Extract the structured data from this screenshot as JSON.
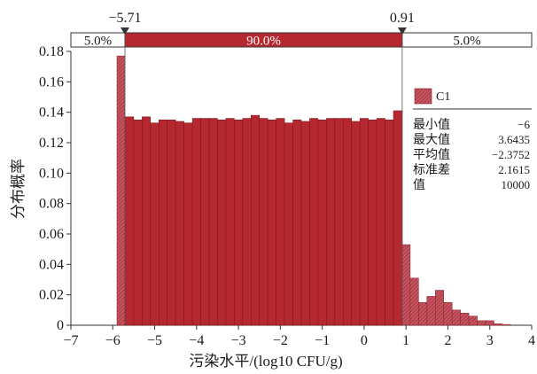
{
  "chart_data": {
    "type": "bar",
    "title": "",
    "xlabel": "污染水平/(log10 CFU/g)",
    "ylabel": "分布概率",
    "xlim": [
      -7,
      4
    ],
    "ylim": [
      0,
      0.18
    ],
    "xticks": [
      -7,
      -6,
      -5,
      -4,
      -3,
      -2,
      -1,
      0,
      1,
      2,
      3,
      4
    ],
    "yticks": [
      0,
      0.02,
      0.04,
      0.06,
      0.08,
      0.1,
      0.12,
      0.14,
      0.16,
      0.18
    ],
    "ytick_labels": [
      "0",
      "0.02",
      "0.04",
      "0.06",
      "0.08",
      "0.10",
      "0.12",
      "0.14",
      "0.16",
      "0.18"
    ],
    "bin_width": 0.2,
    "bins": [
      {
        "x0": -5.9,
        "x1": -5.71,
        "value": 0.177
      },
      {
        "x0": -5.71,
        "x1": -5.5,
        "value": 0.137
      },
      {
        "x0": -5.5,
        "x1": -5.3,
        "value": 0.135
      },
      {
        "x0": -5.3,
        "x1": -5.1,
        "value": 0.137
      },
      {
        "x0": -5.1,
        "x1": -4.9,
        "value": 0.133
      },
      {
        "x0": -4.9,
        "x1": -4.7,
        "value": 0.135
      },
      {
        "x0": -4.7,
        "x1": -4.5,
        "value": 0.135
      },
      {
        "x0": -4.5,
        "x1": -4.3,
        "value": 0.134
      },
      {
        "x0": -4.3,
        "x1": -4.1,
        "value": 0.133
      },
      {
        "x0": -4.1,
        "x1": -3.9,
        "value": 0.136
      },
      {
        "x0": -3.9,
        "x1": -3.7,
        "value": 0.136
      },
      {
        "x0": -3.7,
        "x1": -3.5,
        "value": 0.136
      },
      {
        "x0": -3.5,
        "x1": -3.3,
        "value": 0.135
      },
      {
        "x0": -3.3,
        "x1": -3.1,
        "value": 0.136
      },
      {
        "x0": -3.1,
        "x1": -2.9,
        "value": 0.135
      },
      {
        "x0": -2.9,
        "x1": -2.7,
        "value": 0.136
      },
      {
        "x0": -2.7,
        "x1": -2.5,
        "value": 0.138
      },
      {
        "x0": -2.5,
        "x1": -2.3,
        "value": 0.136
      },
      {
        "x0": -2.3,
        "x1": -2.1,
        "value": 0.135
      },
      {
        "x0": -2.1,
        "x1": -1.9,
        "value": 0.136
      },
      {
        "x0": -1.9,
        "x1": -1.7,
        "value": 0.133
      },
      {
        "x0": -1.7,
        "x1": -1.5,
        "value": 0.135
      },
      {
        "x0": -1.5,
        "x1": -1.3,
        "value": 0.134
      },
      {
        "x0": -1.3,
        "x1": -1.1,
        "value": 0.136
      },
      {
        "x0": -1.1,
        "x1": -0.9,
        "value": 0.135
      },
      {
        "x0": -0.9,
        "x1": -0.7,
        "value": 0.136
      },
      {
        "x0": -0.7,
        "x1": -0.5,
        "value": 0.136
      },
      {
        "x0": -0.5,
        "x1": -0.3,
        "value": 0.136
      },
      {
        "x0": -0.3,
        "x1": -0.1,
        "value": 0.134
      },
      {
        "x0": -0.1,
        "x1": 0.1,
        "value": 0.136
      },
      {
        "x0": 0.1,
        "x1": 0.3,
        "value": 0.135
      },
      {
        "x0": 0.3,
        "x1": 0.5,
        "value": 0.136
      },
      {
        "x0": 0.5,
        "x1": 0.7,
        "value": 0.135
      },
      {
        "x0": 0.7,
        "x1": 0.91,
        "value": 0.141
      },
      {
        "x0": 0.91,
        "x1": 1.1,
        "value": 0.053
      },
      {
        "x0": 1.1,
        "x1": 1.3,
        "value": 0.031
      },
      {
        "x0": 1.3,
        "x1": 1.5,
        "value": 0.015
      },
      {
        "x0": 1.5,
        "x1": 1.7,
        "value": 0.019
      },
      {
        "x0": 1.7,
        "x1": 1.9,
        "value": 0.023
      },
      {
        "x0": 1.9,
        "x1": 2.1,
        "value": 0.015
      },
      {
        "x0": 2.1,
        "x1": 2.3,
        "value": 0.01
      },
      {
        "x0": 2.3,
        "x1": 2.5,
        "value": 0.008
      },
      {
        "x0": 2.5,
        "x1": 2.7,
        "value": 0.006
      },
      {
        "x0": 2.7,
        "x1": 2.9,
        "value": 0.003
      },
      {
        "x0": 2.9,
        "x1": 3.1,
        "value": 0.003
      },
      {
        "x0": 3.1,
        "x1": 3.3,
        "value": 0.001
      },
      {
        "x0": 3.3,
        "x1": 3.5,
        "value": 0.0005
      }
    ],
    "series": [
      {
        "name": "C1",
        "color": "#b5282f"
      }
    ],
    "delimiters": [
      {
        "value": -5.71,
        "label": "−5.71"
      },
      {
        "value": 0.91,
        "label": "0.91"
      }
    ],
    "percent_bar": [
      {
        "label": "5.0%",
        "from": -7,
        "to": -5.71
      },
      {
        "label": "90.0%",
        "from": -5.71,
        "to": 0.91
      },
      {
        "label": "5.0%",
        "from": 0.91,
        "to": 4
      }
    ],
    "stats": [
      {
        "label": "最小值",
        "value": "−6"
      },
      {
        "label": "最大值",
        "value": "3.6435"
      },
      {
        "label": "平均值",
        "value": "−2.3752"
      },
      {
        "label": "标准差",
        "value": "2.1615"
      },
      {
        "label": "值",
        "value": "10000"
      }
    ],
    "grid": false,
    "legend_position": "top-right",
    "colors": {
      "bar": "#b5282f",
      "bar_outside": "#c94a56",
      "percent_bar_center": "#b5282f",
      "axis": "#333333"
    }
  }
}
